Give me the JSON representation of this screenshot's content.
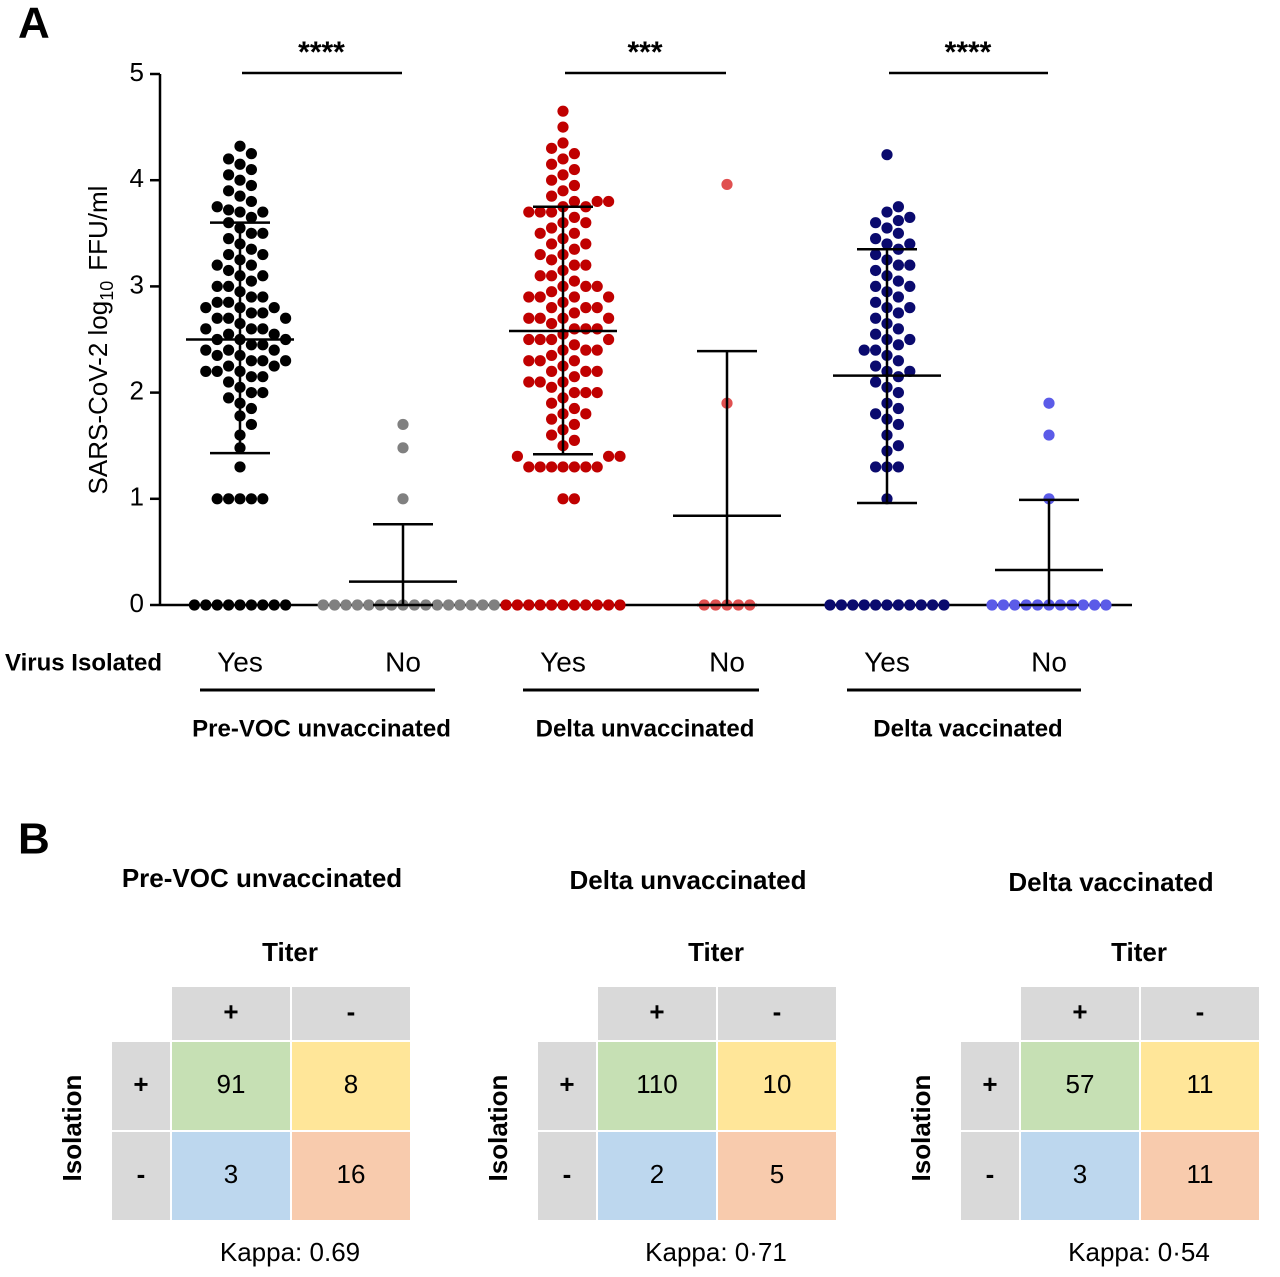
{
  "chart_data": {
    "type": "scatter",
    "panel_label": "A",
    "y_label": [
      "SARS-CoV-2 log",
      "10",
      "FFU/ml"
    ],
    "x_row_label": "Virus Isolated",
    "ylim": [
      0,
      5
    ],
    "yticks": [
      0,
      1,
      2,
      3,
      4,
      5
    ],
    "groups": [
      {
        "name": "Pre-VOC unvaccinated",
        "significance": "****",
        "series": [
          {
            "name": "Yes",
            "color": "#000000",
            "mean": 2.5,
            "sd_upper": 3.6,
            "sd_lower": 1.43,
            "values": [
              0,
              0,
              0,
              0,
              0,
              0,
              0,
              0,
              0,
              1.0,
              1.0,
              1.0,
              1.0,
              1.0,
              1.3,
              1.48,
              1.6,
              1.7,
              1.78,
              1.85,
              1.9,
              1.95,
              2.0,
              2.0,
              2.05,
              2.1,
              2.15,
              2.15,
              2.2,
              2.2,
              2.25,
              2.25,
              2.3,
              2.3,
              2.35,
              2.35,
              2.4,
              2.4,
              2.45,
              2.45,
              2.5,
              2.5,
              2.55,
              2.55,
              2.6,
              2.6,
              2.65,
              2.7,
              2.7,
              2.75,
              2.75,
              2.8,
              2.8,
              2.85,
              2.85,
              2.9,
              2.9,
              2.95,
              3.0,
              3.0,
              3.05,
              3.1,
              3.1,
              3.15,
              3.2,
              3.25,
              3.3,
              3.3,
              3.35,
              3.4,
              3.45,
              3.5,
              3.55,
              3.6,
              3.65,
              3.7,
              3.7,
              3.72,
              3.75,
              3.8,
              3.85,
              3.9,
              3.95,
              4.0,
              4.05,
              4.1,
              4.15,
              4.2,
              4.25,
              4.32,
              2.2,
              2.3,
              2.4,
              2.5,
              2.6,
              2.7,
              2.8,
              3.2,
              3.5
            ]
          },
          {
            "name": "No",
            "color": "#808080",
            "mean": 0.22,
            "sd_upper": 0.76,
            "sd_lower": 0,
            "values": [
              0,
              0,
              0,
              0,
              0,
              0,
              0,
              0,
              0,
              0,
              0,
              0,
              0,
              0,
              0,
              0,
              1.0,
              1.48,
              1.7
            ]
          }
        ]
      },
      {
        "name": "Delta unvaccinated",
        "significance": "***",
        "series": [
          {
            "name": "Yes",
            "color": "#c00000",
            "mean": 2.58,
            "sd_upper": 3.75,
            "sd_lower": 1.42,
            "values": [
              0,
              0,
              0,
              0,
              0,
              0,
              0,
              0,
              0,
              0,
              0,
              1.0,
              1.0,
              1.3,
              1.3,
              1.3,
              1.3,
              1.3,
              1.3,
              1.3,
              1.4,
              1.4,
              1.4,
              1.5,
              1.55,
              1.6,
              1.65,
              1.7,
              1.75,
              1.8,
              1.85,
              1.9,
              1.95,
              2.0,
              2.0,
              2.05,
              2.1,
              2.1,
              2.15,
              2.2,
              2.2,
              2.25,
              2.3,
              2.3,
              2.35,
              2.4,
              2.4,
              2.45,
              2.5,
              2.5,
              2.55,
              2.6,
              2.6,
              2.65,
              2.7,
              2.7,
              2.75,
              2.8,
              2.8,
              2.85,
              2.9,
              2.9,
              2.95,
              3.0,
              3.0,
              3.05,
              3.1,
              3.1,
              3.15,
              3.2,
              3.2,
              3.25,
              3.3,
              3.3,
              3.35,
              3.4,
              3.4,
              3.45,
              3.5,
              3.5,
              3.55,
              3.6,
              3.6,
              3.65,
              3.7,
              3.7,
              3.75,
              3.75,
              3.8,
              3.8,
              3.85,
              3.9,
              3.95,
              4.0,
              4.05,
              4.1,
              4.15,
              4.2,
              4.25,
              4.3,
              4.35,
              4.5,
              4.65,
              2.0,
              2.2,
              2.4,
              2.6,
              2.8,
              3.0,
              2.5,
              2.7,
              2.9,
              3.7,
              1.8,
              2.1,
              2.3,
              2.5,
              2.7,
              2.9,
              3.8
            ]
          },
          {
            "name": "No",
            "color": "#e05050",
            "mean": 0.84,
            "sd_upper": 2.39,
            "sd_lower": 0,
            "values": [
              0,
              0,
              0,
              0,
              0,
              1.9,
              3.96
            ]
          }
        ]
      },
      {
        "name": "Delta vaccinated",
        "significance": "****",
        "series": [
          {
            "name": "Yes",
            "color": "#0a0a6e",
            "mean": 2.16,
            "sd_upper": 3.35,
            "sd_lower": 0.96,
            "values": [
              0,
              0,
              0,
              0,
              0,
              0,
              0,
              0,
              0,
              0,
              0,
              1.0,
              1.3,
              1.3,
              1.3,
              1.45,
              1.5,
              1.6,
              1.7,
              1.75,
              1.8,
              1.85,
              1.9,
              2.0,
              2.05,
              2.1,
              2.15,
              2.2,
              2.25,
              2.3,
              2.35,
              2.4,
              2.45,
              2.5,
              2.55,
              2.6,
              2.65,
              2.7,
              2.75,
              2.8,
              2.85,
              2.9,
              2.95,
              3.0,
              3.05,
              3.1,
              3.15,
              3.2,
              3.25,
              3.3,
              3.35,
              3.4,
              3.45,
              3.5,
              3.55,
              3.6,
              3.62,
              3.65,
              3.7,
              3.75,
              4.24,
              2.2,
              2.5,
              2.8,
              3.0,
              3.2,
              2.4,
              3.4
            ]
          },
          {
            "name": "No",
            "color": "#5b5be8",
            "mean": 0.33,
            "sd_upper": 0.99,
            "sd_lower": 0,
            "values": [
              0,
              0,
              0,
              0,
              0,
              0,
              0,
              0,
              0,
              0,
              0,
              1.0,
              1.6,
              1.9
            ]
          }
        ]
      }
    ]
  },
  "tables_panel": {
    "panel_label": "B",
    "tables": [
      {
        "title": "Pre-VOC unvaccinated",
        "col_header": "Titer",
        "row_header": "Isolation",
        "col_labels": [
          "+",
          "-"
        ],
        "row_labels": [
          "+",
          "-"
        ],
        "cells": [
          [
            91,
            8
          ],
          [
            3,
            16
          ]
        ],
        "kappa": "Kappa: 0.69"
      },
      {
        "title": "Delta unvaccinated",
        "col_header": "Titer",
        "row_header": "Isolation",
        "col_labels": [
          "+",
          "-"
        ],
        "row_labels": [
          "+",
          "-"
        ],
        "cells": [
          [
            110,
            10
          ],
          [
            2,
            5
          ]
        ],
        "kappa": "Kappa: 0·71"
      },
      {
        "title": "Delta vaccinated",
        "col_header": "Titer",
        "row_header": "Isolation",
        "col_labels": [
          "+",
          "-"
        ],
        "row_labels": [
          "+",
          "-"
        ],
        "cells": [
          [
            57,
            11
          ],
          [
            3,
            11
          ]
        ],
        "kappa": "Kappa: 0·54"
      }
    ]
  }
}
